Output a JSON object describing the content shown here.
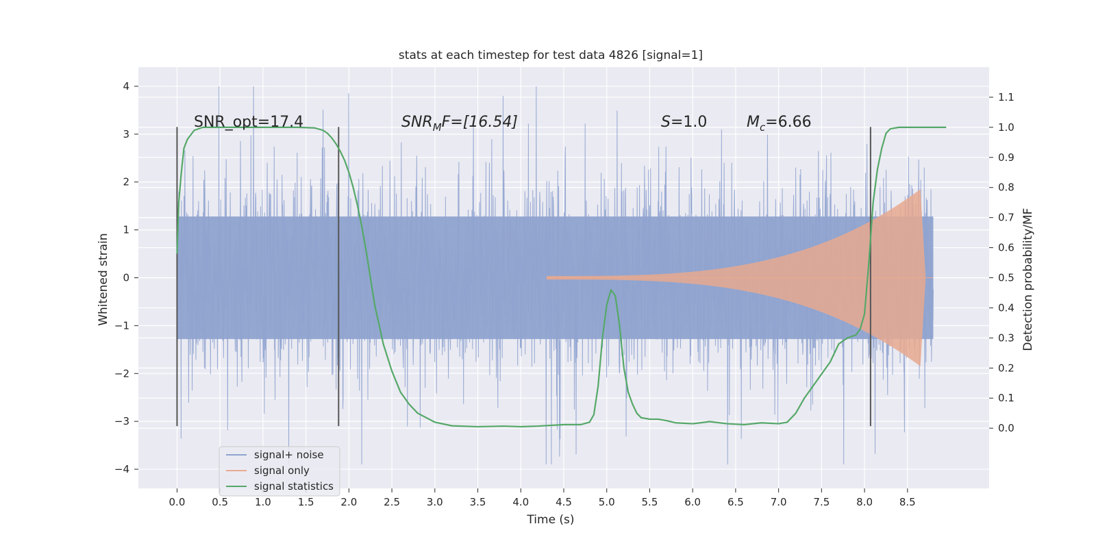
{
  "chart_data": {
    "type": "line",
    "title": "stats at each timestep for test data 4826 [signal=1]",
    "xlabel": "Time (s)",
    "ylabel_left": "Whitened strain",
    "ylabel_right": "Detection probability/MF",
    "xlim": [
      -0.45,
      9.45
    ],
    "ylim_left": [
      -4.4,
      4.4
    ],
    "ylim_right": [
      -0.2,
      1.2
    ],
    "x_ticks": [
      "0.0",
      "0.5",
      "1.0",
      "1.5",
      "2.0",
      "2.5",
      "3.0",
      "3.5",
      "4.0",
      "4.5",
      "5.0",
      "5.5",
      "6.0",
      "6.5",
      "7.0",
      "7.5",
      "8.0",
      "8.5"
    ],
    "y_left_ticks": [
      "4",
      "3",
      "2",
      "1",
      "0",
      "−1",
      "−2",
      "−3",
      "−4"
    ],
    "y_right_ticks": [
      "1.1",
      "1.0",
      "0.9",
      "0.8",
      "0.7",
      "0.6",
      "0.5",
      "0.4",
      "0.3",
      "0.2",
      "0.1",
      "0.0"
    ],
    "grid": true,
    "legend_position": "lower-left",
    "series": [
      {
        "name": "signal+ noise",
        "color": "#8fa3cf",
        "description": "noisy whitened strain, roughly -3.9 to 4.0, spanning t = 0.0 to 8.8 s",
        "t_range": [
          0.0,
          8.8
        ],
        "amplitude_typical": 1.3,
        "amplitude_extreme": [
          -3.9,
          4.0
        ]
      },
      {
        "name": "signal only",
        "color": "#e8a98f",
        "description": "chirp waveform growing from t ≈ 4.3 s, peaking near ±1.85 at t ≈ 8.65 s",
        "t_start": 4.3,
        "t_peak": 8.65,
        "peak_amplitude": 1.85
      },
      {
        "name": "signal statistics",
        "color": "#55a868",
        "axis": "right",
        "x": [
          0.0,
          0.02,
          0.05,
          0.08,
          0.12,
          0.2,
          0.3,
          0.5,
          1.0,
          1.4,
          1.6,
          1.7,
          1.75,
          1.8,
          1.85,
          1.9,
          1.95,
          2.0,
          2.05,
          2.1,
          2.15,
          2.2,
          2.25,
          2.3,
          2.4,
          2.5,
          2.6,
          2.7,
          2.8,
          3.0,
          3.2,
          3.5,
          3.8,
          4.0,
          4.2,
          4.5,
          4.7,
          4.8,
          4.85,
          4.9,
          4.95,
          5.0,
          5.05,
          5.1,
          5.15,
          5.2,
          5.25,
          5.3,
          5.35,
          5.4,
          5.5,
          5.6,
          5.7,
          5.8,
          6.0,
          6.2,
          6.4,
          6.6,
          6.8,
          7.0,
          7.1,
          7.2,
          7.3,
          7.4,
          7.5,
          7.6,
          7.7,
          7.8,
          7.9,
          7.95,
          8.0,
          8.05,
          8.1,
          8.15,
          8.2,
          8.25,
          8.3,
          8.4,
          8.5,
          8.6,
          8.8,
          8.95
        ],
        "values": [
          0.58,
          0.75,
          0.85,
          0.93,
          0.96,
          0.99,
          1.0,
          1.0,
          1.0,
          1.0,
          0.998,
          0.99,
          0.98,
          0.965,
          0.945,
          0.92,
          0.89,
          0.85,
          0.8,
          0.74,
          0.67,
          0.59,
          0.5,
          0.41,
          0.28,
          0.19,
          0.12,
          0.08,
          0.05,
          0.02,
          0.008,
          0.005,
          0.007,
          0.005,
          0.007,
          0.012,
          0.012,
          0.02,
          0.045,
          0.14,
          0.3,
          0.41,
          0.46,
          0.44,
          0.34,
          0.2,
          0.12,
          0.08,
          0.05,
          0.035,
          0.03,
          0.03,
          0.025,
          0.018,
          0.015,
          0.022,
          0.015,
          0.012,
          0.018,
          0.015,
          0.02,
          0.05,
          0.1,
          0.14,
          0.18,
          0.22,
          0.28,
          0.3,
          0.31,
          0.33,
          0.38,
          0.55,
          0.75,
          0.86,
          0.93,
          0.98,
          0.995,
          1.0,
          1.0,
          1.0,
          1.0,
          1.0
        ]
      }
    ],
    "vertical_markers": [
      {
        "x": 0.0,
        "ymin": -3.1,
        "ymax": 3.15
      },
      {
        "x": 1.88,
        "ymin": -3.1,
        "ymax": 3.15
      },
      {
        "x": 8.07,
        "ymin": -3.1,
        "ymax": 3.15
      }
    ],
    "annotations": [
      {
        "id": "snr-opt",
        "x": 0.2,
        "y": 3.2,
        "text": "SNR_opt=17.4"
      },
      {
        "id": "snr-mf",
        "x": 2.6,
        "y": 3.2,
        "text": "SNR_M F=[16.54]"
      },
      {
        "id": "s-val",
        "x": 5.6,
        "y": 3.2,
        "text": "S=1.0"
      },
      {
        "id": "mc",
        "x": 6.6,
        "y": 3.2,
        "text": "M_c=6.66"
      }
    ],
    "colors": {
      "background": "#eaeaf2",
      "grid": "#ffffff",
      "noise": "#8fa3cf",
      "signal": "#e8a98f",
      "stat": "#55a868",
      "marker": "#555555"
    }
  },
  "annotation_text": {
    "snr_opt": "SNR_opt=17.4",
    "snr_mf_base": "SNR",
    "snr_mf_sub": "M",
    "snr_mf_rest": "F=[16.54]",
    "s_base": "S",
    "s_rest": "=1.0",
    "mc_base": "M",
    "mc_sub": "c",
    "mc_rest": "=6.66"
  },
  "legend": {
    "items": [
      "signal+ noise",
      "signal only",
      "signal statistics"
    ]
  }
}
